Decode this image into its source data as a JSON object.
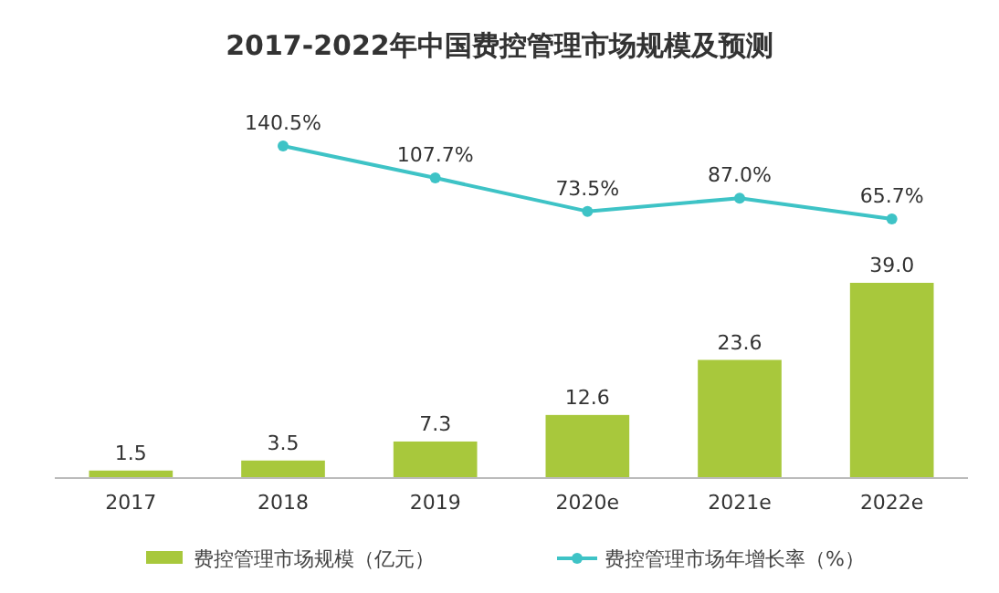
{
  "chart_data": [
    {
      "type": "line",
      "title": "2017-2022年中国费控管理市场规模及预测",
      "categories": [
        null,
        null,
        null,
        null,
        null,
        null
      ],
      "series": [
        {
          "name": "费控管理市场年增长率（%）",
          "color": "#3ec3c6",
          "values": [
            null,
            140.5,
            107.7,
            73.5,
            87.0,
            65.7
          ],
          "value_labels": [
            null,
            "140.5%",
            "107.7%",
            "73.5%",
            "87.0%",
            "65.7%"
          ]
        }
      ],
      "marker": "circle",
      "legend": "bottom",
      "tick_labels": false
    },
    {
      "type": "bar",
      "categories": [
        "2017",
        "2018",
        "2019",
        "2020e",
        "2021e",
        "2022e"
      ],
      "series": [
        {
          "name": "费控管理市场规模（亿元）",
          "color": "#a8c83c",
          "values": [
            1.5,
            3.5,
            7.3,
            12.6,
            23.6,
            39.0
          ],
          "value_labels": [
            "1.5",
            "3.5",
            "7.3",
            "12.6",
            "23.6",
            "39.0"
          ]
        }
      ],
      "legend": "bottom",
      "tick_labels": "x"
    }
  ]
}
